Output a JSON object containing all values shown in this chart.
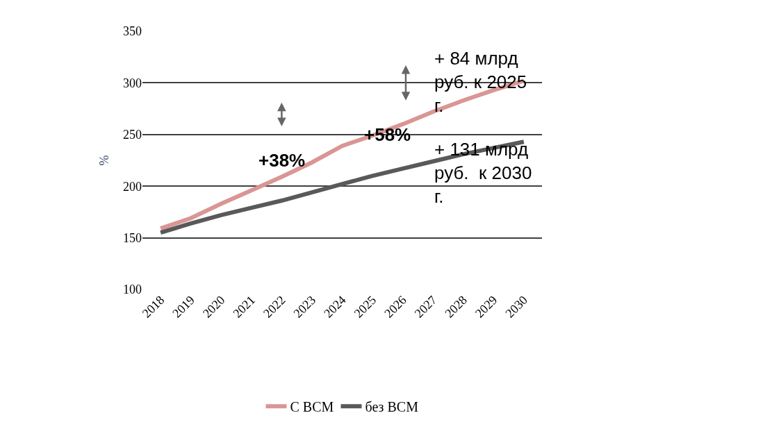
{
  "chart_data": {
    "type": "line",
    "ylabel": "%",
    "categories": [
      "2018",
      "2019",
      "2020",
      "2021",
      "2022",
      "2023",
      "2024",
      "2025",
      "2026",
      "2027",
      "2028",
      "2029",
      "2030"
    ],
    "series": [
      {
        "name": "С ВСМ",
        "color": "#d99694",
        "values": [
          159,
          169,
          183,
          196,
          209,
          223,
          239,
          249,
          260,
          272,
          283,
          293,
          302
        ]
      },
      {
        "name": "без ВСМ",
        "color": "#595959",
        "values": [
          155,
          164,
          172,
          179,
          186,
          194,
          202,
          210,
          217,
          224,
          231,
          237,
          243
        ]
      }
    ],
    "ylim": [
      100,
      350
    ],
    "yticks": [
      100,
      150,
      200,
      250,
      300,
      350
    ],
    "grid": "y",
    "legend": "bottom",
    "marker": "none",
    "line_style": "solid",
    "annotations": [
      "+38%",
      "+58%",
      "+ 84 млрд руб. к 2025 г.",
      "+ 131 млрд руб.  к 2030 г."
    ]
  }
}
